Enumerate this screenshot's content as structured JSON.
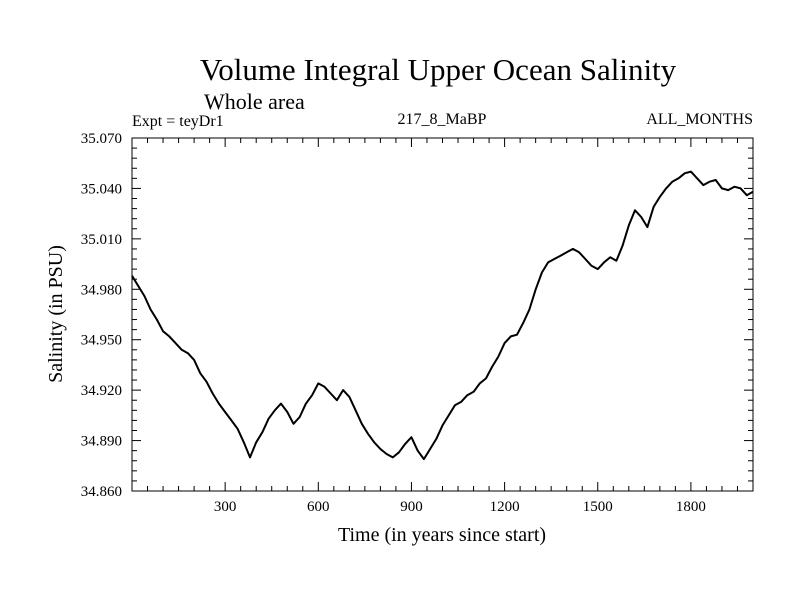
{
  "chart_data": {
    "type": "line",
    "title": "Volume Integral Upper Ocean Salinity",
    "subtitle": "Whole area",
    "annotations": {
      "experiment": "Expt = teyDr1",
      "run": "217_8_MaBP",
      "months": "ALL_MONTHS"
    },
    "xlabel": "Time (in years since start)",
    "ylabel": "Salinity (in PSU)",
    "xlim": [
      0,
      2000
    ],
    "ylim": [
      34.86,
      35.07
    ],
    "xticks": [
      {
        "value": 300,
        "label": "300"
      },
      {
        "value": 600,
        "label": "600"
      },
      {
        "value": 900,
        "label": "900"
      },
      {
        "value": 1200,
        "label": "1200"
      },
      {
        "value": 1500,
        "label": "1500"
      },
      {
        "value": 1800,
        "label": "1800"
      }
    ],
    "yticks": [
      {
        "value": 34.86,
        "label": "34.860"
      },
      {
        "value": 34.89,
        "label": "34.890"
      },
      {
        "value": 34.92,
        "label": "34.920"
      },
      {
        "value": 34.95,
        "label": "34.950"
      },
      {
        "value": 34.98,
        "label": "34.980"
      },
      {
        "value": 35.01,
        "label": "35.010"
      },
      {
        "value": 35.04,
        "label": "35.040"
      },
      {
        "value": 35.07,
        "label": "35.070"
      }
    ],
    "x_minor_step": 50,
    "y_minor_step": 0.006,
    "grid": false,
    "series": [
      {
        "name": "Salinity",
        "color": "#000000",
        "x": [
          0,
          20,
          40,
          60,
          80,
          100,
          120,
          140,
          160,
          180,
          200,
          220,
          240,
          260,
          280,
          300,
          320,
          340,
          360,
          380,
          400,
          420,
          440,
          460,
          480,
          500,
          520,
          540,
          560,
          580,
          600,
          620,
          640,
          660,
          680,
          700,
          720,
          740,
          760,
          780,
          800,
          820,
          840,
          860,
          880,
          900,
          920,
          940,
          960,
          980,
          1000,
          1020,
          1040,
          1060,
          1080,
          1100,
          1120,
          1140,
          1160,
          1180,
          1200,
          1220,
          1240,
          1260,
          1280,
          1300,
          1320,
          1340,
          1360,
          1380,
          1400,
          1420,
          1440,
          1460,
          1480,
          1500,
          1520,
          1540,
          1560,
          1580,
          1600,
          1620,
          1640,
          1660,
          1680,
          1700,
          1720,
          1740,
          1760,
          1780,
          1800,
          1820,
          1840,
          1860,
          1880,
          1900,
          1920,
          1940,
          1960,
          1980,
          2000
        ],
        "values": [
          34.988,
          34.982,
          34.976,
          34.968,
          34.962,
          34.955,
          34.952,
          34.948,
          34.944,
          34.942,
          34.938,
          34.93,
          34.925,
          34.918,
          34.912,
          34.907,
          34.902,
          34.897,
          34.889,
          34.88,
          34.889,
          34.895,
          34.903,
          34.908,
          34.912,
          34.907,
          34.9,
          34.904,
          34.912,
          34.917,
          34.924,
          34.922,
          34.918,
          34.914,
          34.92,
          34.916,
          34.908,
          34.9,
          34.894,
          34.889,
          34.885,
          34.882,
          34.88,
          34.883,
          34.888,
          34.892,
          34.884,
          34.879,
          34.885,
          34.891,
          34.899,
          34.905,
          34.911,
          34.913,
          34.917,
          34.919,
          34.924,
          34.927,
          34.934,
          34.94,
          34.948,
          34.952,
          34.953,
          34.96,
          34.968,
          34.98,
          34.99,
          34.996,
          34.998,
          35.0,
          35.002,
          35.004,
          35.002,
          34.998,
          34.994,
          34.992,
          34.996,
          34.999,
          34.997,
          35.006,
          35.018,
          35.027,
          35.023,
          35.017,
          35.029,
          35.035,
          35.04,
          35.044,
          35.046,
          35.049,
          35.05,
          35.046,
          35.042,
          35.044,
          35.045,
          35.04,
          35.039,
          35.041,
          35.04,
          35.036,
          35.038
        ]
      }
    ]
  }
}
